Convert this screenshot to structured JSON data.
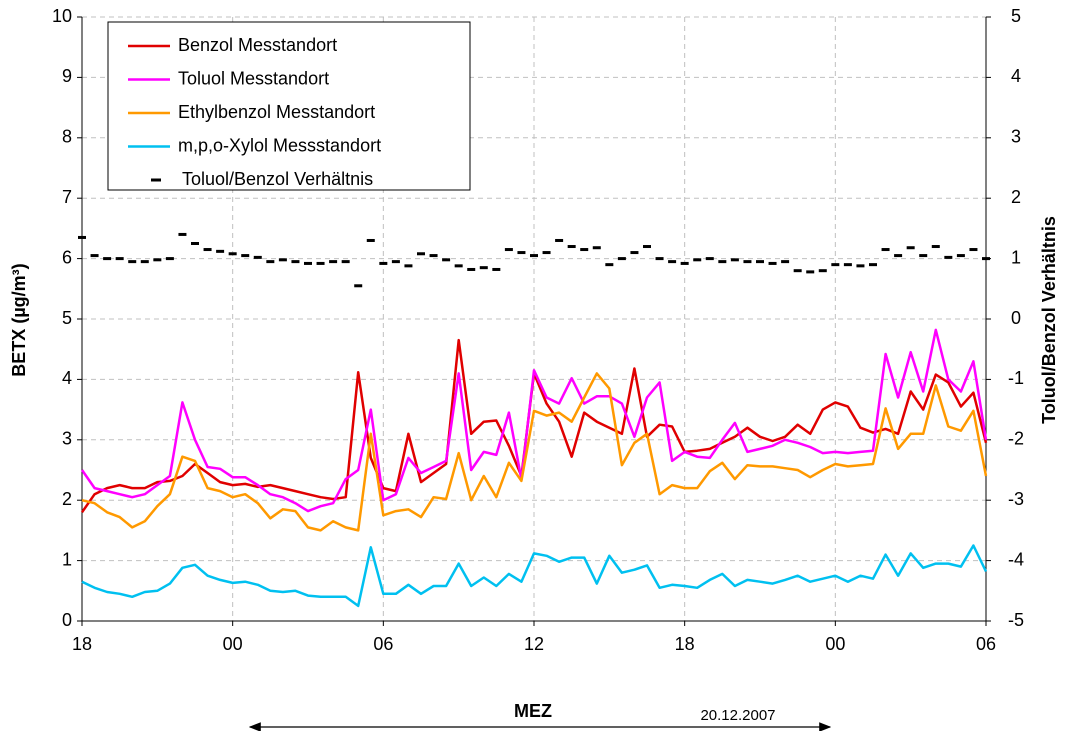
{
  "chart_data": {
    "type": "line",
    "y_label": "BETX (µg/m³)",
    "y2_label": "Toluol/Benzol Verhältnis",
    "x_label": "MEZ",
    "annotation": "20.12.2007",
    "x": [
      0,
      0.5,
      1,
      1.5,
      2,
      2.5,
      3,
      3.5,
      4,
      4.5,
      5,
      5.5,
      6,
      6.5,
      7,
      7.5,
      8,
      8.5,
      9,
      9.5,
      10,
      10.5,
      11,
      11.5,
      12,
      12.5,
      13,
      13.5,
      14,
      14.5,
      15,
      15.5,
      16,
      16.5,
      17,
      17.5,
      18,
      18.5,
      19,
      19.5,
      20,
      20.5,
      21,
      21.5,
      22,
      22.5,
      23,
      23.5,
      24,
      24.5,
      25,
      25.5,
      26,
      26.5,
      27,
      27.5,
      28,
      28.5,
      29,
      29.5,
      30,
      30.5,
      31,
      31.5,
      32,
      32.5,
      33,
      33.5,
      34,
      34.5,
      35,
      35.5,
      36
    ],
    "xlim": [
      0,
      36
    ],
    "xticks": [
      {
        "value": 0,
        "label": "18"
      },
      {
        "value": 6,
        "label": "00"
      },
      {
        "value": 12,
        "label": "06"
      },
      {
        "value": 18,
        "label": "12"
      },
      {
        "value": 24,
        "label": "18"
      },
      {
        "value": 30,
        "label": "00"
      },
      {
        "value": 36,
        "label": "06"
      }
    ],
    "ylim": [
      0,
      10
    ],
    "yticks": [
      0,
      1,
      2,
      3,
      4,
      5,
      6,
      7,
      8,
      9,
      10
    ],
    "y2lim": [
      -5,
      5
    ],
    "y2ticks": [
      -5,
      -4,
      -3,
      -2,
      -1,
      0,
      1,
      2,
      3,
      4,
      5
    ],
    "grid": true,
    "legend": "upper left",
    "series": [
      {
        "name": "Benzol Messtandort",
        "color": "#e00000",
        "values": [
          1.8,
          2.1,
          2.2,
          2.25,
          2.2,
          2.2,
          2.3,
          2.32,
          2.4,
          2.6,
          2.45,
          2.3,
          2.25,
          2.27,
          2.22,
          2.25,
          2.2,
          2.15,
          2.1,
          2.05,
          2.02,
          2.05,
          4.12,
          2.7,
          2.2,
          2.15,
          3.1,
          2.3,
          2.45,
          2.6,
          4.65,
          3.1,
          3.3,
          3.32,
          2.9,
          2.4,
          4.1,
          3.6,
          3.3,
          2.72,
          3.45,
          3.3,
          3.2,
          3.1,
          4.18,
          3.05,
          3.25,
          3.22,
          2.8,
          2.82,
          2.85,
          2.95,
          3.05,
          3.2,
          3.05,
          2.98,
          3.05,
          3.25,
          3.1,
          3.5,
          3.62,
          3.55,
          3.2,
          3.12,
          3.18,
          3.1,
          3.8,
          3.5,
          4.08,
          3.95,
          3.55,
          3.78,
          2.95
        ]
      },
      {
        "name": "Toluol Messtandort",
        "color": "#ff00ff",
        "values": [
          2.5,
          2.2,
          2.15,
          2.1,
          2.05,
          2.1,
          2.25,
          2.4,
          3.62,
          3.0,
          2.55,
          2.52,
          2.38,
          2.38,
          2.25,
          2.1,
          2.05,
          1.95,
          1.82,
          1.9,
          1.95,
          2.35,
          2.5,
          3.5,
          2.0,
          2.1,
          2.7,
          2.45,
          2.55,
          2.65,
          4.1,
          2.5,
          2.8,
          2.75,
          3.45,
          2.35,
          4.15,
          3.7,
          3.6,
          4.02,
          3.6,
          3.72,
          3.72,
          3.6,
          3.05,
          3.7,
          3.95,
          2.65,
          2.8,
          2.72,
          2.7,
          3.0,
          3.28,
          2.8,
          2.85,
          2.9,
          3.0,
          2.95,
          2.88,
          2.78,
          2.8,
          2.78,
          2.8,
          2.82,
          4.42,
          3.7,
          4.45,
          3.8,
          4.82,
          4.0,
          3.8,
          4.3,
          3.0
        ]
      },
      {
        "name": "Ethylbenzol Messtandort",
        "color": "#ff9900",
        "values": [
          2.0,
          1.95,
          1.8,
          1.72,
          1.55,
          1.65,
          1.9,
          2.1,
          2.72,
          2.65,
          2.2,
          2.15,
          2.05,
          2.1,
          1.95,
          1.7,
          1.85,
          1.82,
          1.55,
          1.5,
          1.65,
          1.55,
          1.5,
          3.1,
          1.75,
          1.82,
          1.85,
          1.72,
          2.05,
          2.02,
          2.78,
          2.0,
          2.4,
          2.05,
          2.62,
          2.32,
          3.48,
          3.4,
          3.45,
          3.3,
          3.7,
          4.1,
          3.85,
          2.58,
          2.95,
          3.1,
          2.1,
          2.25,
          2.2,
          2.2,
          2.48,
          2.62,
          2.35,
          2.58,
          2.56,
          2.56,
          2.53,
          2.5,
          2.38,
          2.5,
          2.6,
          2.56,
          2.58,
          2.6,
          3.52,
          2.85,
          3.1,
          3.1,
          3.9,
          3.22,
          3.15,
          3.48,
          2.4
        ]
      },
      {
        "name": "m,p,o-Xylol Messstandort",
        "color": "#00c0f0",
        "values": [
          0.65,
          0.55,
          0.48,
          0.45,
          0.4,
          0.48,
          0.5,
          0.62,
          0.88,
          0.93,
          0.75,
          0.68,
          0.63,
          0.65,
          0.6,
          0.5,
          0.48,
          0.5,
          0.42,
          0.4,
          0.4,
          0.4,
          0.25,
          1.22,
          0.45,
          0.45,
          0.6,
          0.45,
          0.58,
          0.58,
          0.95,
          0.58,
          0.72,
          0.58,
          0.78,
          0.65,
          1.12,
          1.08,
          0.98,
          1.05,
          1.05,
          0.62,
          1.08,
          0.8,
          0.85,
          0.92,
          0.55,
          0.6,
          0.58,
          0.55,
          0.68,
          0.78,
          0.58,
          0.68,
          0.65,
          0.62,
          0.68,
          0.75,
          0.65,
          0.7,
          0.75,
          0.65,
          0.75,
          0.7,
          1.1,
          0.75,
          1.12,
          0.88,
          0.95,
          0.95,
          0.9,
          1.25,
          0.82
        ]
      },
      {
        "name": "Toluol/Benzol Verhältnis",
        "color": "#000000",
        "axis": "y2",
        "marker": "dash",
        "values": [
          1.35,
          1.05,
          1.0,
          1.0,
          0.95,
          0.95,
          0.98,
          1.0,
          1.4,
          1.25,
          1.15,
          1.12,
          1.08,
          1.05,
          1.02,
          0.95,
          0.98,
          0.95,
          0.92,
          0.92,
          0.95,
          0.95,
          0.55,
          1.3,
          0.92,
          0.95,
          0.88,
          1.08,
          1.05,
          0.98,
          0.88,
          0.82,
          0.85,
          0.82,
          1.15,
          1.1,
          1.05,
          1.1,
          1.3,
          1.2,
          1.15,
          1.18,
          0.9,
          1.0,
          1.1,
          1.2,
          1.0,
          0.95,
          0.92,
          0.98,
          1.0,
          0.95,
          0.98,
          0.95,
          0.95,
          0.92,
          0.95,
          0.8,
          0.78,
          0.8,
          0.9,
          0.9,
          0.88,
          0.9,
          1.15,
          1.05,
          1.18,
          1.05,
          1.2,
          1.02,
          1.05,
          1.15,
          1.0
        ]
      }
    ]
  }
}
